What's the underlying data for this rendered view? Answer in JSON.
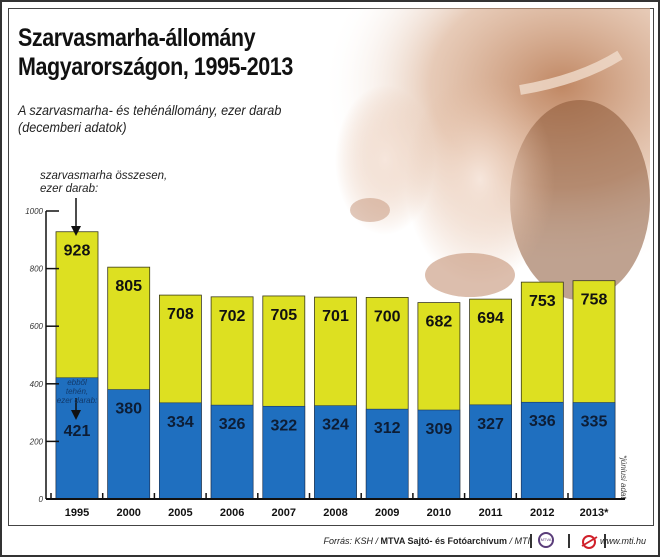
{
  "header": {
    "title_line1": "Szarvasmarha-állomány",
    "title_line2": "Magyarországon, 1995-2013",
    "subtitle_line1": "A szarvasmarha- és tehénállomány, ezer darab",
    "subtitle_line2": "(decemberi adatok)"
  },
  "annotations": {
    "total_line1": "szarvasmarha összesen,",
    "total_line2": "ezer darab:",
    "cows_line1": "ebből tehén,",
    "cows_line2": "ezer darab:",
    "footnote": "*júniusi adat"
  },
  "footer": {
    "source_prefix": "Forrás: KSH / ",
    "source_bold": "MTVA Sajtó- és Fotóarchívum",
    "source_suffix": " / MTI",
    "mtva_logo": "MTVA",
    "website": "www.mti.hu"
  },
  "colors": {
    "total": "#dde021",
    "cows": "#1f6fbf",
    "photo_tint": "#c98a5e"
  },
  "chart_data": {
    "type": "bar",
    "stacked": "overlay",
    "title": "Szarvasmarha-állomány Magyarországon, 1995-2013",
    "subtitle": "A szarvasmarha- és tehénállomány, ezer darab (decemberi adatok)",
    "xlabel": "",
    "ylabel": "",
    "ylim": [
      0,
      1000
    ],
    "yticks": [
      0,
      200,
      400,
      600,
      800,
      1000
    ],
    "grid": false,
    "categories": [
      "1995",
      "2000",
      "2005",
      "2006",
      "2007",
      "2008",
      "2009",
      "2010",
      "2011",
      "2012",
      "2013*"
    ],
    "series": [
      {
        "name": "szarvasmarha összesen",
        "values": [
          928,
          805,
          708,
          702,
          705,
          701,
          700,
          682,
          694,
          753,
          758
        ]
      },
      {
        "name": "ebből tehén",
        "values": [
          421,
          380,
          334,
          326,
          322,
          324,
          312,
          309,
          327,
          336,
          335
        ]
      }
    ]
  }
}
